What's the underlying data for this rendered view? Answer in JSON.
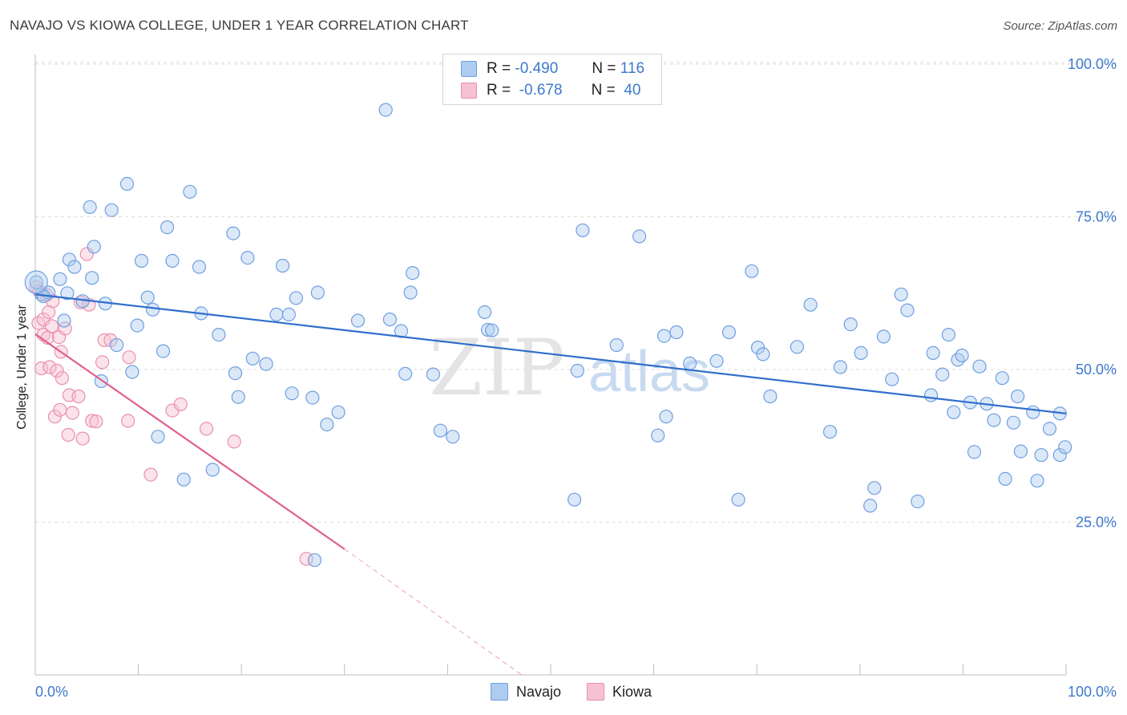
{
  "title": "NAVAJO VS KIOWA COLLEGE, UNDER 1 YEAR CORRELATION CHART",
  "source": "Source: ZipAtlas.com",
  "watermark": {
    "zip": "ZIP",
    "atlas": "atlas"
  },
  "colors": {
    "navajo_fill": "#aecbf0",
    "navajo_stroke": "#6f9fe0",
    "navajo_line": "#2f6fcc",
    "kiowa_fill": "#f6c1d1",
    "kiowa_stroke": "#ea8fae",
    "kiowa_line": "#e0608f",
    "axis_text": "#3d79cc"
  },
  "stats": {
    "navajo": {
      "r_label": "R =",
      "r_value": "-0.490",
      "n_label": "N =",
      "n_value": "116"
    },
    "kiowa": {
      "r_label": "R =",
      "r_value": "-0.678",
      "n_label": "N =",
      "n_value": "40"
    }
  },
  "legend": {
    "navajo": "Navajo",
    "kiowa": "Kiowa"
  },
  "chart_data": {
    "type": "scatter",
    "title": "NAVAJO VS KIOWA COLLEGE, UNDER 1 YEAR CORRELATION CHART",
    "xlabel": "",
    "ylabel": "College, Under 1 year",
    "xlim": [
      0,
      100
    ],
    "ylim": [
      0,
      100
    ],
    "x_tick_labels": [
      "0.0%",
      "100.0%"
    ],
    "y_tick_labels": [
      {
        "value": 100,
        "label": "100.0%"
      },
      {
        "value": 75,
        "label": "75.0%"
      },
      {
        "value": 50,
        "label": "50.0%"
      },
      {
        "value": 25,
        "label": "25.0%"
      }
    ],
    "grid": true,
    "legend_position": "bottom-center",
    "series": [
      {
        "name": "Navajo",
        "trend": {
          "x": [
            0,
            100
          ],
          "y": [
            62.3,
            42.8
          ],
          "dashed_extension": false
        },
        "points": [
          [
            0.1,
            64.3
          ],
          [
            0.6,
            62.3
          ],
          [
            1.3,
            62.6
          ],
          [
            2.4,
            64.8
          ],
          [
            2.8,
            58.0
          ],
          [
            3.3,
            68.0
          ],
          [
            3.8,
            66.8
          ],
          [
            4.6,
            61.2
          ],
          [
            5.3,
            76.6
          ],
          [
            5.5,
            65.0
          ],
          [
            5.7,
            70.1
          ],
          [
            6.4,
            48.1
          ],
          [
            6.8,
            60.8
          ],
          [
            7.4,
            76.1
          ],
          [
            7.9,
            54.0
          ],
          [
            8.9,
            80.4
          ],
          [
            9.4,
            49.6
          ],
          [
            9.9,
            57.2
          ],
          [
            10.3,
            67.8
          ],
          [
            10.9,
            61.8
          ],
          [
            11.4,
            59.8
          ],
          [
            11.9,
            39.0
          ],
          [
            12.4,
            53.0
          ],
          [
            12.8,
            73.3
          ],
          [
            13.3,
            67.8
          ],
          [
            14.4,
            32.0
          ],
          [
            15.0,
            79.1
          ],
          [
            15.9,
            66.8
          ],
          [
            16.1,
            59.2
          ],
          [
            17.2,
            33.6
          ],
          [
            17.8,
            55.7
          ],
          [
            19.2,
            72.3
          ],
          [
            19.4,
            49.4
          ],
          [
            19.7,
            45.5
          ],
          [
            20.6,
            68.3
          ],
          [
            21.1,
            51.8
          ],
          [
            22.4,
            50.9
          ],
          [
            23.4,
            59.0
          ],
          [
            24.0,
            67.0
          ],
          [
            24.6,
            59.0
          ],
          [
            24.9,
            46.1
          ],
          [
            25.3,
            61.7
          ],
          [
            26.9,
            45.4
          ],
          [
            27.1,
            18.8
          ],
          [
            27.4,
            62.6
          ],
          [
            28.3,
            41.0
          ],
          [
            29.4,
            43.0
          ],
          [
            31.3,
            58.0
          ],
          [
            34.0,
            92.5
          ],
          [
            34.4,
            58.2
          ],
          [
            35.5,
            56.3
          ],
          [
            35.9,
            49.3
          ],
          [
            36.4,
            62.6
          ],
          [
            36.6,
            65.8
          ],
          [
            38.6,
            49.2
          ],
          [
            39.3,
            40.0
          ],
          [
            40.5,
            39.0
          ],
          [
            43.6,
            59.4
          ],
          [
            43.9,
            56.5
          ],
          [
            44.3,
            56.4
          ],
          [
            52.3,
            28.7
          ],
          [
            52.6,
            49.8
          ],
          [
            53.1,
            72.8
          ],
          [
            56.4,
            54.0
          ],
          [
            58.6,
            71.8
          ],
          [
            60.4,
            39.2
          ],
          [
            61.0,
            55.5
          ],
          [
            61.2,
            42.3
          ],
          [
            62.2,
            56.1
          ],
          [
            63.5,
            51.0
          ],
          [
            66.1,
            51.4
          ],
          [
            67.3,
            56.1
          ],
          [
            68.2,
            28.7
          ],
          [
            69.5,
            66.1
          ],
          [
            70.1,
            53.6
          ],
          [
            70.6,
            52.5
          ],
          [
            71.3,
            45.6
          ],
          [
            73.9,
            53.7
          ],
          [
            75.2,
            60.6
          ],
          [
            77.1,
            39.8
          ],
          [
            78.1,
            50.4
          ],
          [
            79.1,
            57.4
          ],
          [
            80.1,
            52.7
          ],
          [
            81.0,
            27.7
          ],
          [
            81.4,
            30.6
          ],
          [
            82.3,
            55.4
          ],
          [
            83.1,
            48.4
          ],
          [
            84.0,
            62.3
          ],
          [
            84.6,
            59.7
          ],
          [
            85.6,
            28.4
          ],
          [
            86.9,
            45.8
          ],
          [
            87.1,
            52.7
          ],
          [
            88.0,
            49.2
          ],
          [
            88.6,
            55.7
          ],
          [
            89.1,
            43.0
          ],
          [
            89.5,
            51.6
          ],
          [
            89.9,
            52.3
          ],
          [
            90.7,
            44.6
          ],
          [
            91.1,
            36.5
          ],
          [
            91.6,
            50.5
          ],
          [
            92.3,
            44.4
          ],
          [
            93.0,
            41.7
          ],
          [
            93.8,
            48.6
          ],
          [
            94.1,
            32.1
          ],
          [
            94.9,
            41.3
          ],
          [
            95.3,
            45.6
          ],
          [
            95.6,
            36.6
          ],
          [
            96.8,
            43.0
          ],
          [
            97.2,
            31.8
          ],
          [
            97.6,
            36.0
          ],
          [
            98.4,
            40.3
          ],
          [
            99.4,
            42.8
          ],
          [
            99.4,
            36.0
          ],
          [
            99.9,
            37.3
          ],
          [
            0.8,
            62.0
          ],
          [
            3.1,
            62.5
          ]
        ]
      },
      {
        "name": "Kiowa",
        "trend": {
          "x": [
            0,
            30
          ],
          "y": [
            55.8,
            20.6
          ],
          "dashed_to": [
            47.2,
            0
          ]
        },
        "points": [
          [
            0.1,
            63.5
          ],
          [
            0.3,
            57.6
          ],
          [
            0.4,
            62.8
          ],
          [
            0.6,
            50.2
          ],
          [
            0.8,
            55.7
          ],
          [
            0.8,
            58.2
          ],
          [
            1.1,
            62.2
          ],
          [
            1.2,
            55.2
          ],
          [
            1.3,
            59.4
          ],
          [
            1.4,
            50.4
          ],
          [
            1.6,
            57.1
          ],
          [
            1.7,
            61.2
          ],
          [
            1.9,
            42.3
          ],
          [
            2.1,
            49.8
          ],
          [
            2.3,
            55.3
          ],
          [
            2.4,
            43.4
          ],
          [
            2.5,
            52.9
          ],
          [
            2.6,
            48.6
          ],
          [
            2.9,
            56.7
          ],
          [
            3.2,
            39.3
          ],
          [
            3.3,
            45.8
          ],
          [
            3.6,
            42.9
          ],
          [
            4.2,
            45.6
          ],
          [
            4.4,
            61.0
          ],
          [
            4.6,
            38.7
          ],
          [
            5.0,
            68.9
          ],
          [
            5.2,
            60.6
          ],
          [
            5.5,
            41.6
          ],
          [
            5.9,
            41.5
          ],
          [
            6.5,
            51.2
          ],
          [
            6.7,
            54.8
          ],
          [
            7.3,
            54.8
          ],
          [
            9.0,
            41.6
          ],
          [
            9.1,
            52.0
          ],
          [
            11.2,
            32.8
          ],
          [
            13.3,
            43.3
          ],
          [
            14.1,
            44.3
          ],
          [
            16.6,
            40.3
          ],
          [
            19.3,
            38.2
          ],
          [
            26.3,
            19.0
          ]
        ]
      }
    ]
  }
}
